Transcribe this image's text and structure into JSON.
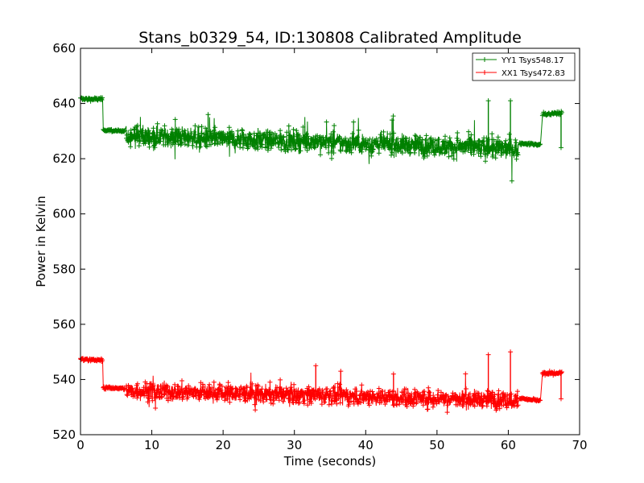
{
  "chart_data": {
    "type": "line",
    "title": "Stans_b0329_54, ID:130808 Calibrated Amplitude",
    "xlabel": "Time (seconds)",
    "ylabel": "Power in Kelvin",
    "xlim": [
      0,
      70
    ],
    "ylim": [
      520,
      660
    ],
    "xticks": [
      "0",
      "10",
      "20",
      "30",
      "40",
      "50",
      "60",
      "70"
    ],
    "yticks": [
      "520",
      "540",
      "560",
      "580",
      "600",
      "620",
      "640",
      "660"
    ],
    "grid": false,
    "legend_position": "top-right",
    "marker": "+",
    "series": [
      {
        "name": "YY1 Tsys548.17",
        "color": "#008000",
        "segments": [
          {
            "x": [
              0,
              3.1
            ],
            "level": [
              641.7,
              641.5
            ],
            "noise": 0.5
          },
          {
            "x": [
              3.2,
              6.2
            ],
            "level": [
              630.5,
              629.8
            ],
            "noise": 0.4
          },
          {
            "x": [
              6.4,
              61.4
            ],
            "level": [
              628.5,
              623.5
            ],
            "noise": 3.2
          },
          {
            "x": [
              61.6,
              64.5
            ],
            "level": [
              625.6,
              625.0
            ],
            "noise": 0.4
          },
          {
            "x": [
              64.8,
              67.5
            ],
            "level": [
              636.0,
              636.5
            ],
            "noise": 0.7
          }
        ],
        "spikes": [
          {
            "x": 57.2,
            "y": 641
          },
          {
            "x": 57.3,
            "y": 627
          },
          {
            "x": 60.3,
            "y": 641
          },
          {
            "x": 17.9,
            "y": 636
          },
          {
            "x": 43.7,
            "y": 634
          },
          {
            "x": 67.4,
            "y": 624
          }
        ]
      },
      {
        "name": "XX1 Tsys472.83",
        "color": "#ff0000",
        "segments": [
          {
            "x": [
              0,
              3.1
            ],
            "level": [
              547.3,
              547.0
            ],
            "noise": 0.5
          },
          {
            "x": [
              3.2,
              6.2
            ],
            "level": [
              537.0,
              536.8
            ],
            "noise": 0.4
          },
          {
            "x": [
              6.4,
              61.4
            ],
            "level": [
              536.0,
              532.5
            ],
            "noise": 2.8
          },
          {
            "x": [
              61.6,
              64.5
            ],
            "level": [
              533.2,
              532.4
            ],
            "noise": 0.4
          },
          {
            "x": [
              64.8,
              67.5
            ],
            "level": [
              542.0,
              542.3
            ],
            "noise": 0.6
          }
        ],
        "spikes": [
          {
            "x": 57.2,
            "y": 549
          },
          {
            "x": 60.3,
            "y": 550
          },
          {
            "x": 33.0,
            "y": 545
          },
          {
            "x": 36.5,
            "y": 543
          },
          {
            "x": 43.9,
            "y": 542
          },
          {
            "x": 67.4,
            "y": 533
          }
        ]
      }
    ]
  }
}
